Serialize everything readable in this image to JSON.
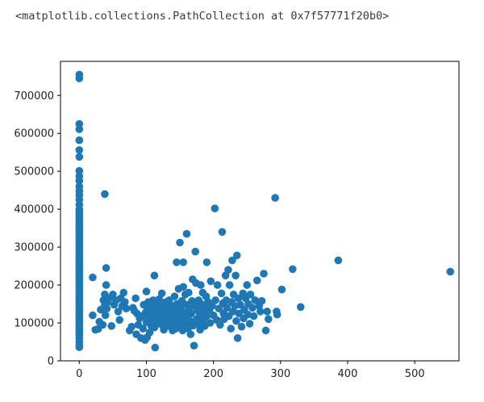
{
  "output": {
    "repr": "<matplotlib.collections.PathCollection at 0x7f57771f20b0>"
  },
  "chart_data": {
    "type": "scatter",
    "title": "",
    "xlabel": "",
    "ylabel": "",
    "xlim": [
      -28,
      566
    ],
    "ylim": [
      0,
      790000
    ],
    "xticks": [
      0,
      100,
      200,
      300,
      400,
      500
    ],
    "yticks": [
      0,
      100000,
      200000,
      300000,
      400000,
      500000,
      600000,
      700000
    ],
    "xtick_labels": [
      "0",
      "100",
      "200",
      "300",
      "400",
      "500"
    ],
    "ytick_labels": [
      "0",
      "100000",
      "200000",
      "300000",
      "400000",
      "500000",
      "600000",
      "700000"
    ],
    "grid": false,
    "marker_color": "#1f77b4",
    "points": [
      [
        0,
        755000
      ],
      [
        0,
        745000
      ],
      [
        0,
        625000
      ],
      [
        0,
        611000
      ],
      [
        0,
        582000
      ],
      [
        0,
        556000
      ],
      [
        0,
        538000
      ],
      [
        0,
        501000
      ],
      [
        0,
        487000
      ],
      [
        0,
        475000
      ],
      [
        0,
        460000
      ],
      [
        0,
        448000
      ],
      [
        0,
        437000
      ],
      [
        0,
        425000
      ],
      [
        0,
        412000
      ],
      [
        0,
        400000
      ],
      [
        0,
        392000
      ],
      [
        0,
        385000
      ],
      [
        0,
        378000
      ],
      [
        0,
        370000
      ],
      [
        0,
        362000
      ],
      [
        0,
        355000
      ],
      [
        0,
        348000
      ],
      [
        0,
        340000
      ],
      [
        0,
        332000
      ],
      [
        0,
        325000
      ],
      [
        0,
        318000
      ],
      [
        0,
        310000
      ],
      [
        0,
        302000
      ],
      [
        0,
        295000
      ],
      [
        0,
        288000
      ],
      [
        0,
        280000
      ],
      [
        0,
        272000
      ],
      [
        0,
        265000
      ],
      [
        0,
        258000
      ],
      [
        0,
        250000
      ],
      [
        0,
        243000
      ],
      [
        0,
        236000
      ],
      [
        0,
        229000
      ],
      [
        0,
        222000
      ],
      [
        0,
        215000
      ],
      [
        0,
        208000
      ],
      [
        0,
        201000
      ],
      [
        0,
        194000
      ],
      [
        0,
        187000
      ],
      [
        0,
        180000
      ],
      [
        0,
        173000
      ],
      [
        0,
        166000
      ],
      [
        0,
        159000
      ],
      [
        0,
        152000
      ],
      [
        0,
        145000
      ],
      [
        0,
        138000
      ],
      [
        0,
        131000
      ],
      [
        0,
        124000
      ],
      [
        0,
        117000
      ],
      [
        0,
        110000
      ],
      [
        0,
        103000
      ],
      [
        0,
        96000
      ],
      [
        0,
        89000
      ],
      [
        0,
        82000
      ],
      [
        0,
        75000
      ],
      [
        0,
        68000
      ],
      [
        0,
        60000
      ],
      [
        0,
        50000
      ],
      [
        0,
        40000
      ],
      [
        0,
        36000
      ],
      [
        20,
        220000
      ],
      [
        20,
        120000
      ],
      [
        24,
        82000
      ],
      [
        28,
        84000
      ],
      [
        30,
        103000
      ],
      [
        32,
        135000
      ],
      [
        35,
        95000
      ],
      [
        36,
        160000
      ],
      [
        38,
        175000
      ],
      [
        38,
        440000
      ],
      [
        38,
        148000
      ],
      [
        39,
        120000
      ],
      [
        40,
        245000
      ],
      [
        40,
        200000
      ],
      [
        41,
        138000
      ],
      [
        42,
        155000
      ],
      [
        45,
        165000
      ],
      [
        48,
        92000
      ],
      [
        50,
        175000
      ],
      [
        52,
        148000
      ],
      [
        55,
        160000
      ],
      [
        58,
        130000
      ],
      [
        60,
        108000
      ],
      [
        62,
        165000
      ],
      [
        64,
        145000
      ],
      [
        66,
        180000
      ],
      [
        68,
        155000
      ],
      [
        70,
        138000
      ],
      [
        75,
        80000
      ],
      [
        78,
        90000
      ],
      [
        80,
        140000
      ],
      [
        82,
        132000
      ],
      [
        84,
        165000
      ],
      [
        85,
        70000
      ],
      [
        86,
        125000
      ],
      [
        88,
        95000
      ],
      [
        90,
        112000
      ],
      [
        92,
        60000
      ],
      [
        94,
        118000
      ],
      [
        95,
        85000
      ],
      [
        96,
        148000
      ],
      [
        98,
        55000
      ],
      [
        99,
        128000
      ],
      [
        100,
        183000
      ],
      [
        100,
        102000
      ],
      [
        101,
        62000
      ],
      [
        102,
        140000
      ],
      [
        103,
        155000
      ],
      [
        104,
        118000
      ],
      [
        105,
        75000
      ],
      [
        106,
        108000
      ],
      [
        107,
        93000
      ],
      [
        108,
        130000
      ],
      [
        109,
        145000
      ],
      [
        110,
        160000
      ],
      [
        110,
        120000
      ],
      [
        111,
        100000
      ],
      [
        112,
        225000
      ],
      [
        112,
        88000
      ],
      [
        113,
        35000
      ],
      [
        114,
        110000
      ],
      [
        115,
        138000
      ],
      [
        116,
        150000
      ],
      [
        117,
        125000
      ],
      [
        118,
        98000
      ],
      [
        119,
        163000
      ],
      [
        120,
        115000
      ],
      [
        121,
        145000
      ],
      [
        122,
        130000
      ],
      [
        123,
        178000
      ],
      [
        124,
        105000
      ],
      [
        125,
        92000
      ],
      [
        126,
        82000
      ],
      [
        127,
        140000
      ],
      [
        128,
        122000
      ],
      [
        129,
        155000
      ],
      [
        130,
        108000
      ],
      [
        131,
        135000
      ],
      [
        132,
        98000
      ],
      [
        133,
        115000
      ],
      [
        134,
        160000
      ],
      [
        135,
        128000
      ],
      [
        136,
        90000
      ],
      [
        137,
        145000
      ],
      [
        138,
        112000
      ],
      [
        139,
        80000
      ],
      [
        140,
        130000
      ],
      [
        141,
        100000
      ],
      [
        142,
        170000
      ],
      [
        143,
        118000
      ],
      [
        144,
        85000
      ],
      [
        145,
        260000
      ],
      [
        145,
        150000
      ],
      [
        146,
        137000
      ],
      [
        147,
        92000
      ],
      [
        148,
        190000
      ],
      [
        149,
        125000
      ],
      [
        150,
        312000
      ],
      [
        150,
        110000
      ],
      [
        151,
        142000
      ],
      [
        152,
        100000
      ],
      [
        153,
        158000
      ],
      [
        154,
        80000
      ],
      [
        155,
        260000
      ],
      [
        155,
        195000
      ],
      [
        156,
        128000
      ],
      [
        157,
        112000
      ],
      [
        158,
        175000
      ],
      [
        159,
        95000
      ],
      [
        160,
        335000
      ],
      [
        160,
        148000
      ],
      [
        161,
        120000
      ],
      [
        162,
        85000
      ],
      [
        163,
        180000
      ],
      [
        164,
        138000
      ],
      [
        165,
        105000
      ],
      [
        166,
        70000
      ],
      [
        167,
        125000
      ],
      [
        168,
        158000
      ],
      [
        169,
        215000
      ],
      [
        170,
        93000
      ],
      [
        171,
        40000
      ],
      [
        172,
        145000
      ],
      [
        173,
        288000
      ],
      [
        174,
        205000
      ],
      [
        175,
        110000
      ],
      [
        176,
        135000
      ],
      [
        177,
        98000
      ],
      [
        178,
        160000
      ],
      [
        179,
        125000
      ],
      [
        180,
        82000
      ],
      [
        181,
        200000
      ],
      [
        182,
        150000
      ],
      [
        183,
        115000
      ],
      [
        184,
        180000
      ],
      [
        185,
        105000
      ],
      [
        186,
        140000
      ],
      [
        187,
        92000
      ],
      [
        188,
        128000
      ],
      [
        189,
        170000
      ],
      [
        190,
        260000
      ],
      [
        190,
        118000
      ],
      [
        192,
        155000
      ],
      [
        194,
        135000
      ],
      [
        195,
        100000
      ],
      [
        196,
        210000
      ],
      [
        198,
        145000
      ],
      [
        200,
        120000
      ],
      [
        202,
        402000
      ],
      [
        203,
        160000
      ],
      [
        205,
        108000
      ],
      [
        206,
        200000
      ],
      [
        208,
        138000
      ],
      [
        210,
        95000
      ],
      [
        212,
        178000
      ],
      [
        213,
        340000
      ],
      [
        214,
        152000
      ],
      [
        215,
        125000
      ],
      [
        216,
        110000
      ],
      [
        218,
        225000
      ],
      [
        219,
        160000
      ],
      [
        220,
        140000
      ],
      [
        222,
        240000
      ],
      [
        223,
        118000
      ],
      [
        224,
        200000
      ],
      [
        226,
        85000
      ],
      [
        227,
        155000
      ],
      [
        228,
        265000
      ],
      [
        229,
        130000
      ],
      [
        230,
        175000
      ],
      [
        232,
        145000
      ],
      [
        233,
        225000
      ],
      [
        234,
        105000
      ],
      [
        235,
        278000
      ],
      [
        236,
        60000
      ],
      [
        237,
        165000
      ],
      [
        238,
        125000
      ],
      [
        240,
        148000
      ],
      [
        242,
        90000
      ],
      [
        244,
        178000
      ],
      [
        245,
        112000
      ],
      [
        246,
        135000
      ],
      [
        248,
        165000
      ],
      [
        250,
        200000
      ],
      [
        251,
        122000
      ],
      [
        252,
        150000
      ],
      [
        254,
        98000
      ],
      [
        255,
        175000
      ],
      [
        258,
        140000
      ],
      [
        260,
        118000
      ],
      [
        262,
        160000
      ],
      [
        265,
        212000
      ],
      [
        268,
        145000
      ],
      [
        270,
        130000
      ],
      [
        272,
        158000
      ],
      [
        275,
        230000
      ],
      [
        278,
        80000
      ],
      [
        280,
        130000
      ],
      [
        282,
        110000
      ],
      [
        292,
        430000
      ],
      [
        294,
        130000
      ],
      [
        295,
        122000
      ],
      [
        302,
        188000
      ],
      [
        318,
        242000
      ],
      [
        330,
        142000
      ],
      [
        386,
        265000
      ],
      [
        553,
        235000
      ]
    ]
  }
}
